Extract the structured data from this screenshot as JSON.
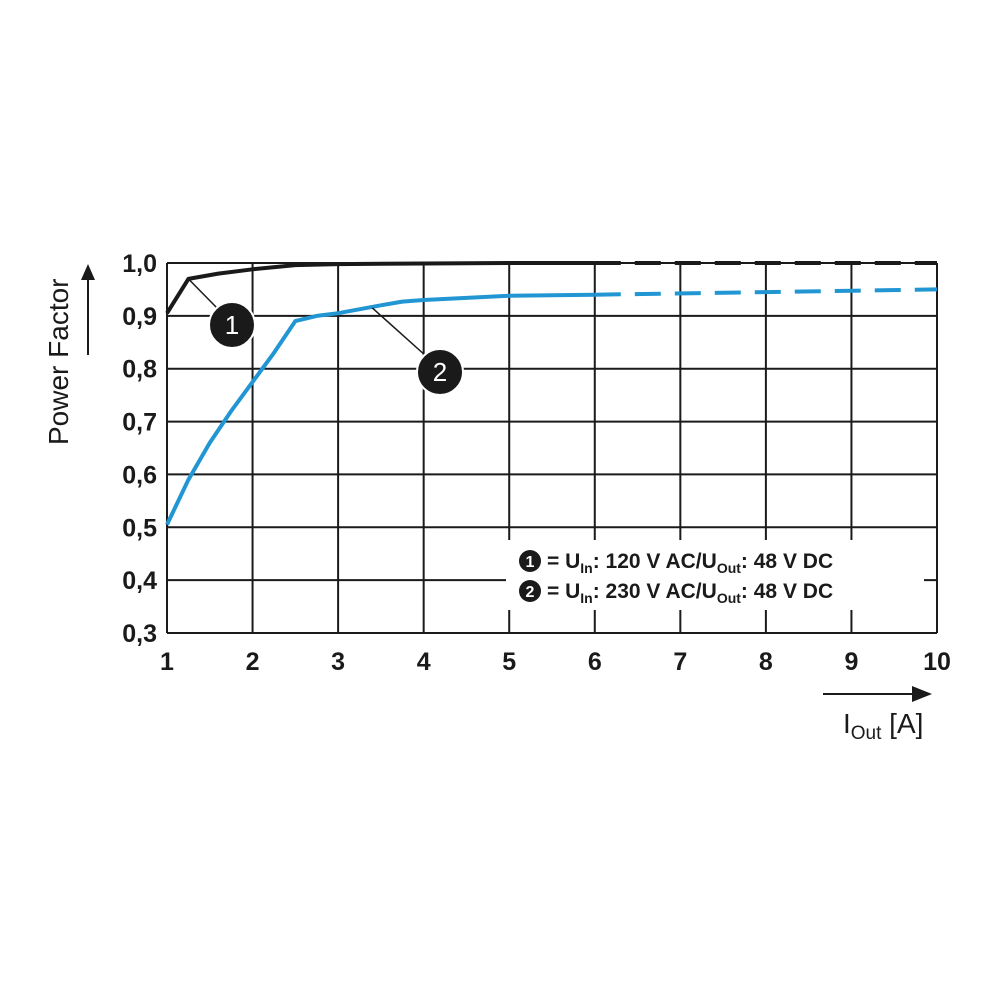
{
  "chart_data": {
    "type": "line",
    "xlabel": {
      "main": "I",
      "sub": "Out",
      "unit": " [A]"
    },
    "ylabel": "Power Factor",
    "xlim": [
      1,
      10
    ],
    "ylim": [
      0.3,
      1.0
    ],
    "x_ticks": [
      "1",
      "2",
      "3",
      "4",
      "5",
      "6",
      "7",
      "8",
      "9",
      "10"
    ],
    "y_ticks": [
      "0,3",
      "0,4",
      "0,5",
      "0,6",
      "0,7",
      "0,8",
      "0,9",
      "1,0"
    ],
    "grid": true,
    "series": [
      {
        "marker": "1",
        "color": "#1a1a1a",
        "points": [
          [
            1.0,
            0.905
          ],
          [
            1.25,
            0.97
          ],
          [
            1.6,
            0.98
          ],
          [
            2.0,
            0.988
          ],
          [
            2.5,
            0.996
          ],
          [
            3.0,
            0.998
          ],
          [
            4.0,
            0.999
          ],
          [
            5.0,
            1.0
          ],
          [
            6.0,
            1.0
          ]
        ],
        "extrapolated": [
          [
            6.0,
            1.0
          ],
          [
            10.0,
            1.0
          ]
        ]
      },
      {
        "marker": "2",
        "color": "#2196d3",
        "points": [
          [
            1.0,
            0.505
          ],
          [
            1.25,
            0.59
          ],
          [
            1.5,
            0.66
          ],
          [
            1.75,
            0.72
          ],
          [
            2.0,
            0.775
          ],
          [
            2.25,
            0.83
          ],
          [
            2.5,
            0.89
          ],
          [
            2.75,
            0.9
          ],
          [
            3.0,
            0.905
          ],
          [
            3.5,
            0.92
          ],
          [
            3.75,
            0.927
          ],
          [
            4.0,
            0.93
          ],
          [
            5.0,
            0.938
          ],
          [
            6.0,
            0.94
          ]
        ],
        "extrapolated": [
          [
            6.0,
            0.94
          ],
          [
            8.0,
            0.945
          ],
          [
            10.0,
            0.95
          ]
        ]
      }
    ],
    "annotations": [
      {
        "label": "1",
        "series": 0,
        "at": [
          1.25,
          0.97
        ]
      },
      {
        "label": "2",
        "series": 1,
        "at": [
          3.4,
          0.915
        ]
      }
    ],
    "legend": {
      "placement": "bottom-right",
      "entries": [
        {
          "marker": "1",
          "eq": "= U",
          "sub1": "In",
          "mid": ": 120 V AC/U",
          "sub2": "Out",
          "end": ": 48 V DC"
        },
        {
          "marker": "2",
          "eq": "= U",
          "sub1": "In",
          "mid": ": 230 V AC/U",
          "sub2": "Out",
          "end": ": 48 V DC"
        }
      ]
    }
  }
}
